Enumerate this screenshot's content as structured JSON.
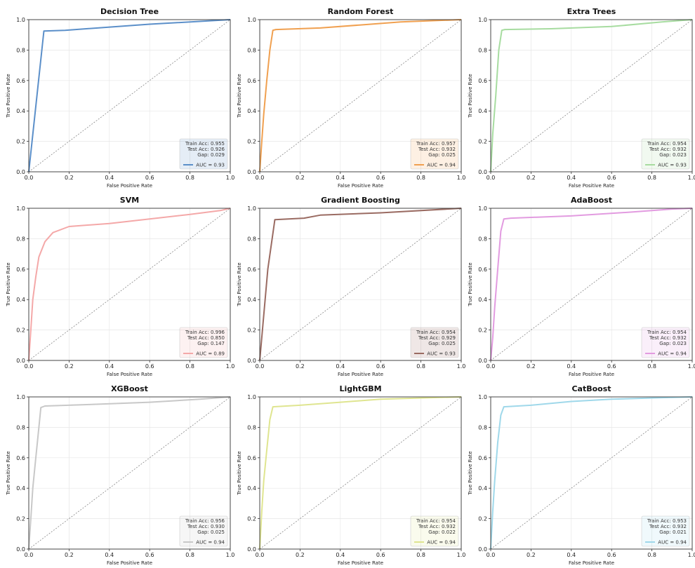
{
  "chart_data": [
    {
      "type": "line",
      "title": "Decision Tree",
      "xlabel": "False Positive Rate",
      "ylabel": "True Positive Rate",
      "xlim": [
        0,
        1
      ],
      "ylim": [
        0,
        1
      ],
      "grid": true,
      "legend": "bottom-right",
      "series": [
        {
          "name": "AUC = 0.93",
          "color": "#5b8fc9",
          "x": [
            0,
            0.075,
            0.18,
            0.6,
            1.0
          ],
          "y": [
            0,
            0.925,
            0.93,
            0.97,
            1.0
          ]
        }
      ],
      "stats": [
        "Train Acc: 0.955",
        "Test Acc: 0.926",
        "Gap: 0.029"
      ]
    },
    {
      "type": "line",
      "title": "Random Forest",
      "xlabel": "False Positive Rate",
      "ylabel": "True Positive Rate",
      "xlim": [
        0,
        1
      ],
      "ylim": [
        0,
        1
      ],
      "grid": true,
      "legend": "bottom-right",
      "series": [
        {
          "name": "AUC = 0.94",
          "color": "#f0a050",
          "x": [
            0,
            0.01,
            0.02,
            0.035,
            0.05,
            0.065,
            0.08,
            0.3,
            0.5,
            0.7,
            1.0
          ],
          "y": [
            0,
            0.2,
            0.38,
            0.6,
            0.8,
            0.93,
            0.935,
            0.945,
            0.965,
            0.985,
            1.0
          ]
        }
      ],
      "stats": [
        "Train Acc: 0.957",
        "Test Acc: 0.932",
        "Gap: 0.025"
      ]
    },
    {
      "type": "line",
      "title": "Extra Trees",
      "xlabel": "False Positive Rate",
      "ylabel": "True Positive Rate",
      "xlim": [
        0,
        1
      ],
      "ylim": [
        0,
        1
      ],
      "grid": true,
      "legend": "bottom-right",
      "series": [
        {
          "name": "AUC = 0.93",
          "color": "#a7dca0",
          "x": [
            0,
            0.01,
            0.025,
            0.04,
            0.055,
            0.07,
            0.3,
            0.6,
            0.85,
            1.0
          ],
          "y": [
            0,
            0.25,
            0.5,
            0.8,
            0.93,
            0.935,
            0.94,
            0.955,
            0.985,
            1.0
          ]
        }
      ],
      "stats": [
        "Train Acc: 0.954",
        "Test Acc: 0.932",
        "Gap: 0.023"
      ]
    },
    {
      "type": "line",
      "title": "SVM",
      "xlabel": "False Positive Rate",
      "ylabel": "True Positive Rate",
      "xlim": [
        0,
        1
      ],
      "ylim": [
        0,
        1
      ],
      "grid": true,
      "legend": "bottom-right",
      "series": [
        {
          "name": "AUC = 0.89",
          "color": "#f4a8a8",
          "x": [
            0,
            0.01,
            0.02,
            0.035,
            0.05,
            0.08,
            0.12,
            0.2,
            0.4,
            0.6,
            0.8,
            0.95,
            1.0
          ],
          "y": [
            0,
            0.2,
            0.4,
            0.55,
            0.68,
            0.78,
            0.84,
            0.88,
            0.9,
            0.93,
            0.96,
            0.985,
            1.0
          ]
        }
      ],
      "stats": [
        "Train Acc: 0.996",
        "Test Acc: 0.850",
        "Gap: 0.147"
      ]
    },
    {
      "type": "line",
      "title": "Gradient Boosting",
      "xlabel": "False Positive Rate",
      "ylabel": "True Positive Rate",
      "xlim": [
        0,
        1
      ],
      "ylim": [
        0,
        1
      ],
      "grid": true,
      "legend": "bottom-right",
      "series": [
        {
          "name": "AUC = 0.93",
          "color": "#9a6b62",
          "x": [
            0,
            0.04,
            0.075,
            0.22,
            0.3,
            0.6,
            1.0
          ],
          "y": [
            0,
            0.6,
            0.925,
            0.935,
            0.955,
            0.97,
            1.0
          ]
        }
      ],
      "stats": [
        "Train Acc: 0.954",
        "Test Acc: 0.929",
        "Gap: 0.025"
      ]
    },
    {
      "type": "line",
      "title": "AdaBoost",
      "xlabel": "False Positive Rate",
      "ylabel": "True Positive Rate",
      "xlim": [
        0,
        1
      ],
      "ylim": [
        0,
        1
      ],
      "grid": true,
      "legend": "bottom-right",
      "series": [
        {
          "name": "AUC = 0.94",
          "color": "#e29be0",
          "x": [
            0,
            0.01,
            0.02,
            0.035,
            0.05,
            0.065,
            0.1,
            0.4,
            0.7,
            0.9,
            1.0
          ],
          "y": [
            0,
            0.15,
            0.35,
            0.6,
            0.85,
            0.93,
            0.935,
            0.95,
            0.975,
            0.995,
            1.0
          ]
        }
      ],
      "stats": [
        "Train Acc: 0.954",
        "Test Acc: 0.932",
        "Gap: 0.023"
      ]
    },
    {
      "type": "line",
      "title": "XGBoost",
      "xlabel": "False Positive Rate",
      "ylabel": "True Positive Rate",
      "xlim": [
        0,
        1
      ],
      "ylim": [
        0,
        1
      ],
      "grid": true,
      "legend": "bottom-right",
      "series": [
        {
          "name": "AUC = 0.94",
          "color": "#c8c8c8",
          "x": [
            0,
            0.01,
            0.02,
            0.035,
            0.05,
            0.06,
            0.08,
            0.3,
            0.6,
            0.85,
            1.0
          ],
          "y": [
            0,
            0.2,
            0.4,
            0.6,
            0.8,
            0.93,
            0.94,
            0.95,
            0.965,
            0.985,
            1.0
          ]
        }
      ],
      "stats": [
        "Train Acc: 0.956",
        "Test Acc: 0.930",
        "Gap: 0.025"
      ]
    },
    {
      "type": "line",
      "title": "LightGBM",
      "xlabel": "False Positive Rate",
      "ylabel": "True Positive Rate",
      "xlim": [
        0,
        1
      ],
      "ylim": [
        0,
        1
      ],
      "grid": true,
      "legend": "bottom-right",
      "series": [
        {
          "name": "AUC = 0.94",
          "color": "#dfe590",
          "x": [
            0,
            0.01,
            0.02,
            0.035,
            0.05,
            0.065,
            0.2,
            0.4,
            0.6,
            0.85,
            1.0
          ],
          "y": [
            0,
            0.25,
            0.45,
            0.65,
            0.85,
            0.935,
            0.945,
            0.965,
            0.985,
            0.995,
            1.0
          ]
        }
      ],
      "stats": [
        "Train Acc: 0.954",
        "Test Acc: 0.932",
        "Gap: 0.022"
      ]
    },
    {
      "type": "line",
      "title": "CatBoost",
      "xlabel": "False Positive Rate",
      "ylabel": "True Positive Rate",
      "xlim": [
        0,
        1
      ],
      "ylim": [
        0,
        1
      ],
      "grid": true,
      "legend": "bottom-right",
      "series": [
        {
          "name": "AUC = 0.94",
          "color": "#9fd8ea",
          "x": [
            0,
            0.01,
            0.02,
            0.035,
            0.05,
            0.065,
            0.2,
            0.4,
            0.6,
            0.85,
            1.0
          ],
          "y": [
            0,
            0.25,
            0.45,
            0.7,
            0.88,
            0.935,
            0.945,
            0.97,
            0.985,
            0.995,
            1.0
          ]
        }
      ],
      "stats": [
        "Train Acc: 0.953",
        "Test Acc: 0.932",
        "Gap: 0.021"
      ]
    }
  ]
}
